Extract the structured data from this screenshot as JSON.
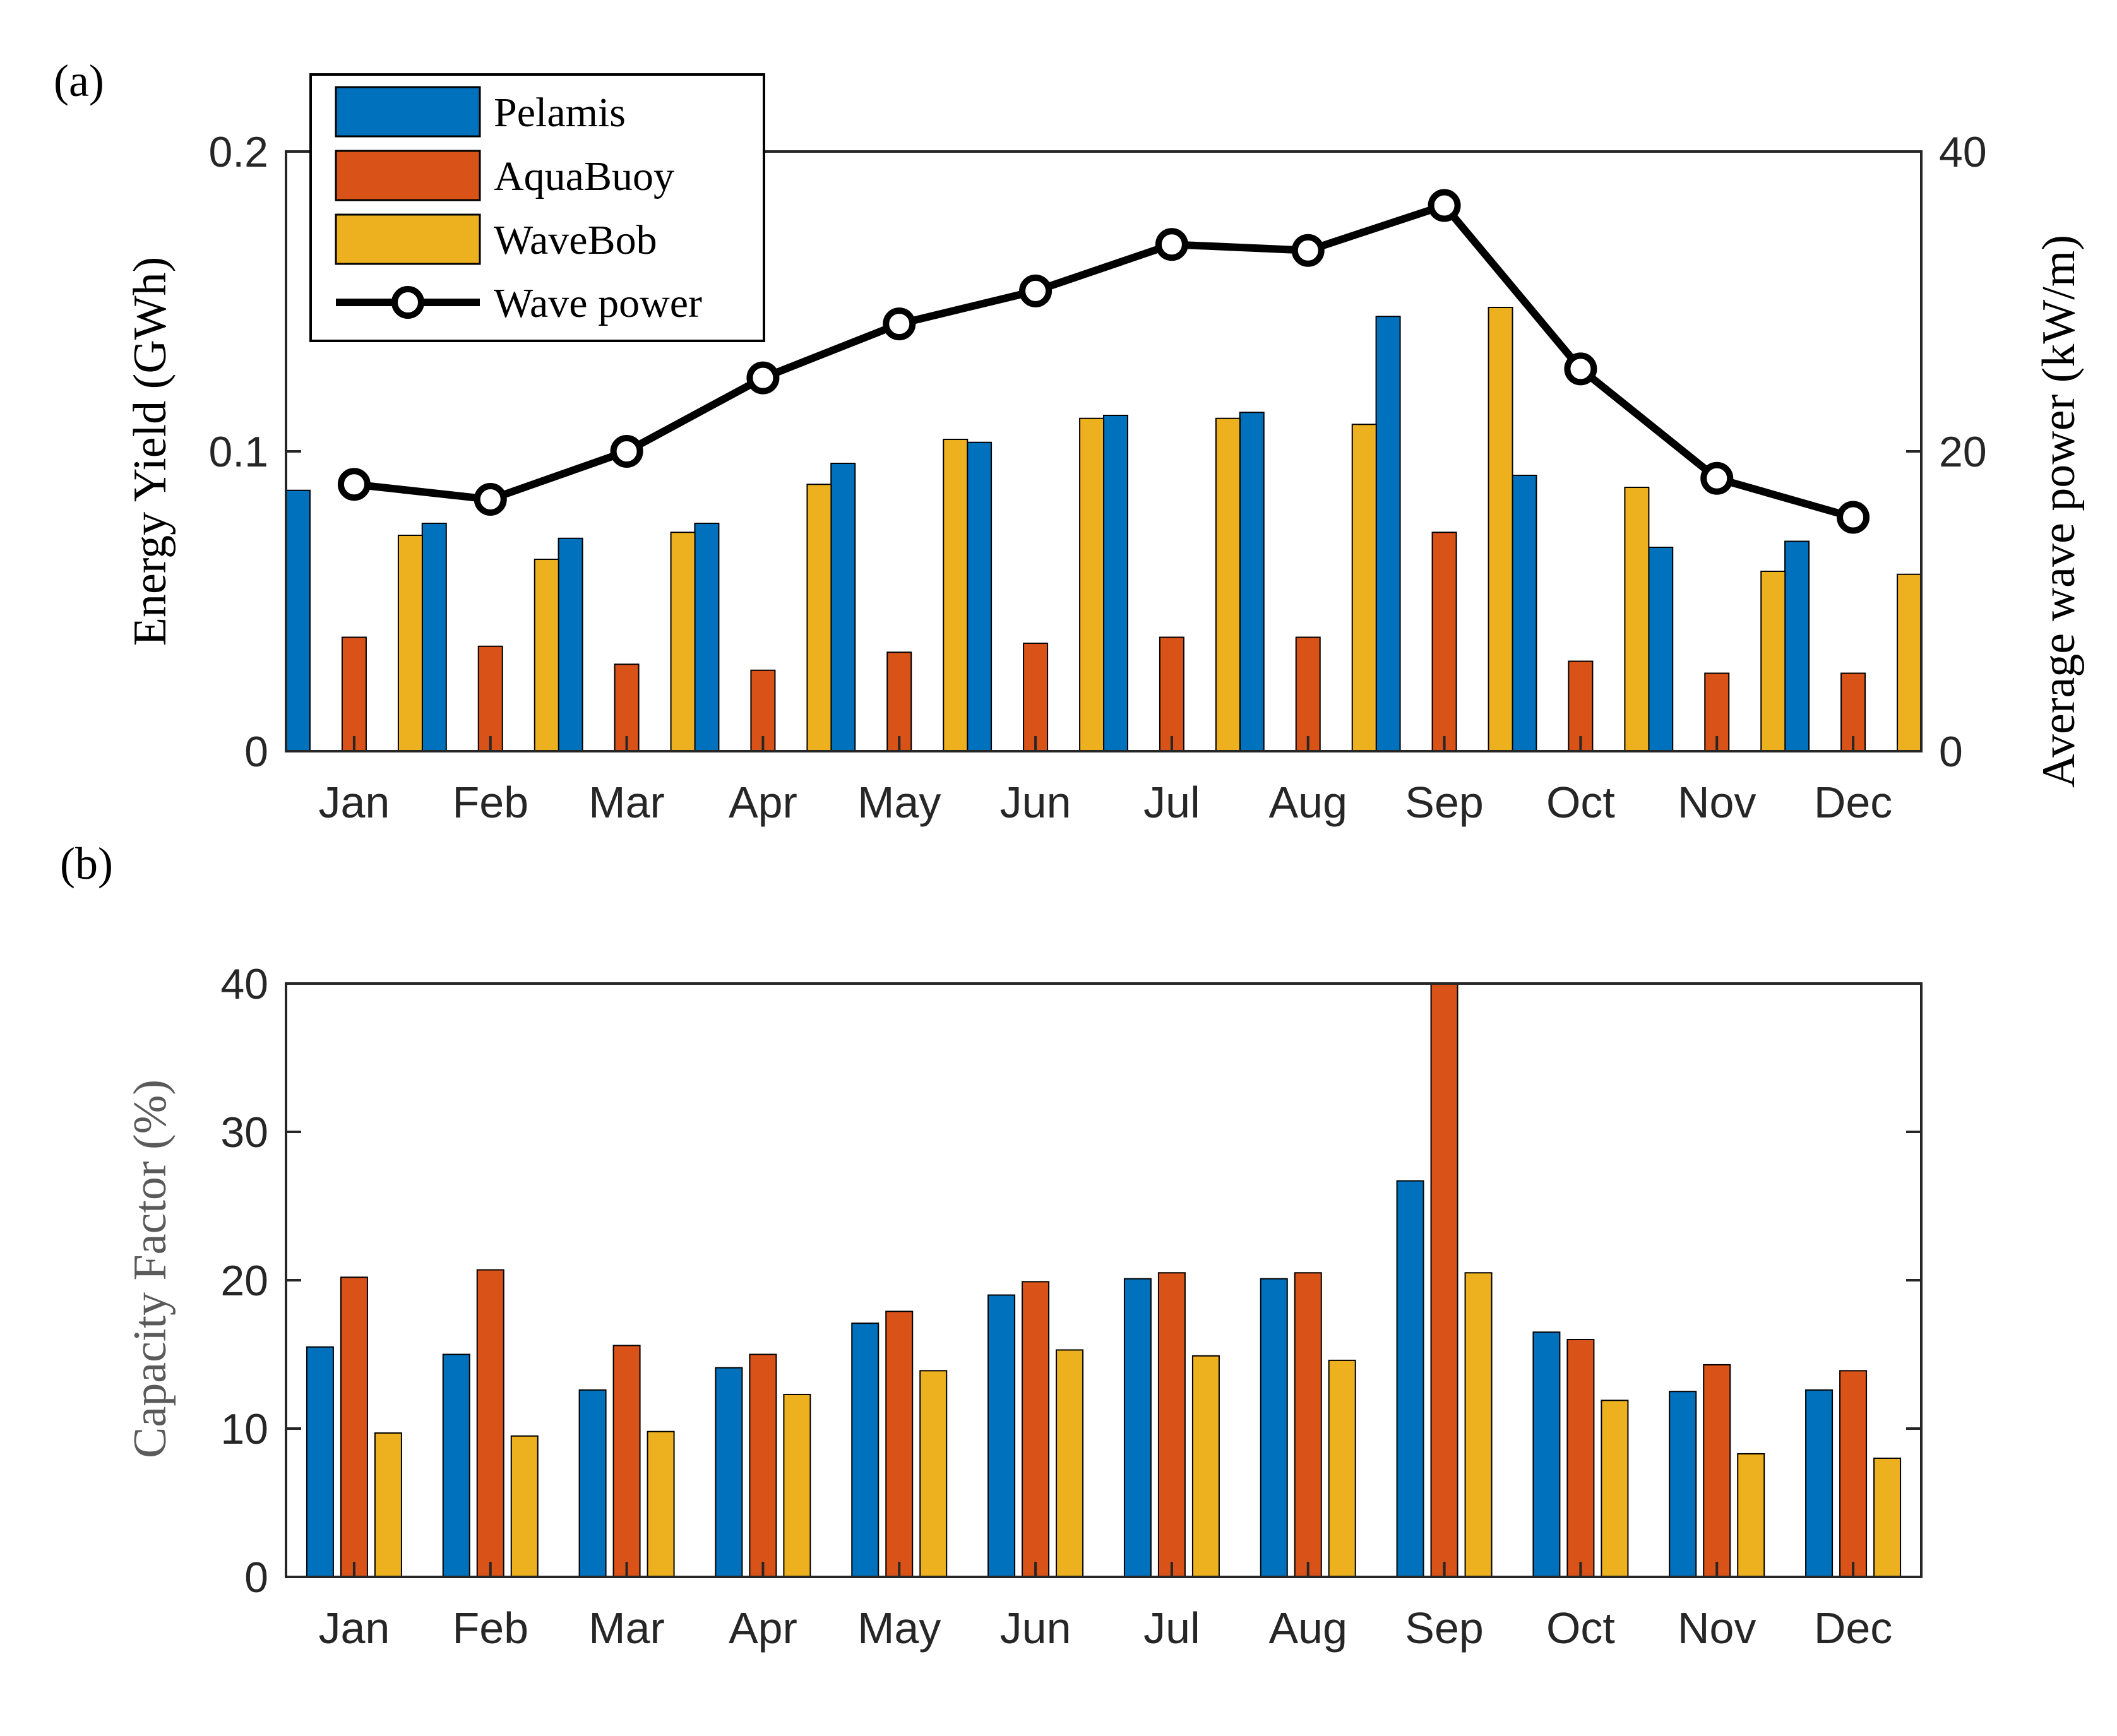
{
  "colors": {
    "pelamis": "#0072BD",
    "aquabuoy": "#D95319",
    "wavebob": "#EDB120",
    "wave_power": "#000000",
    "axis": "#262626",
    "bar_edge": "#000000"
  },
  "chart_data": [
    {
      "type": "bar",
      "panel_label": "(a)",
      "categories": [
        "Jan",
        "Feb",
        "Mar",
        "Apr",
        "May",
        "Jun",
        "Jul",
        "Aug",
        "Sep",
        "Oct",
        "Nov",
        "Dec"
      ],
      "ylabel": "Energy Yield (GWh)",
      "ylim": [
        0,
        0.2
      ],
      "yticks": [
        0,
        0.1,
        0.2
      ],
      "ytick_labels": [
        "0",
        "0.1",
        "0.2"
      ],
      "y2label": "Average wave power (kW/m)",
      "y2lim": [
        0,
        40
      ],
      "y2ticks": [
        0,
        20,
        40
      ],
      "y2tick_labels": [
        "0",
        "20",
        "40"
      ],
      "grid": false,
      "legend_position": "top-left",
      "series": [
        {
          "name": "Pelamis",
          "color_key": "pelamis",
          "values": [
            0.087,
            0.076,
            0.071,
            0.076,
            0.096,
            0.103,
            0.112,
            0.113,
            0.145,
            0.092,
            0.068,
            0.07
          ]
        },
        {
          "name": "AquaBuoy",
          "color_key": "aquabuoy",
          "values": [
            0.038,
            0.035,
            0.029,
            0.027,
            0.033,
            0.036,
            0.038,
            0.038,
            0.073,
            0.03,
            0.026,
            0.026
          ]
        },
        {
          "name": "WaveBob",
          "color_key": "wavebob",
          "values": [
            0.072,
            0.064,
            0.073,
            0.089,
            0.104,
            0.111,
            0.111,
            0.109,
            0.148,
            0.088,
            0.06,
            0.059
          ]
        }
      ],
      "line_series": {
        "name": "Wave power",
        "axis": "right",
        "color_key": "wave_power",
        "values": [
          17.8,
          16.8,
          20.0,
          24.9,
          28.5,
          30.7,
          33.8,
          33.4,
          36.4,
          25.5,
          18.2,
          15.6
        ]
      }
    },
    {
      "type": "bar",
      "panel_label": "(b)",
      "categories": [
        "Jan",
        "Feb",
        "Mar",
        "Apr",
        "May",
        "Jun",
        "Jul",
        "Aug",
        "Sep",
        "Oct",
        "Nov",
        "Dec"
      ],
      "ylabel": "Capacity Factor (%)",
      "ylim": [
        0,
        40
      ],
      "yticks": [
        0,
        10,
        20,
        30,
        40
      ],
      "ytick_labels": [
        "0",
        "10",
        "20",
        "30",
        "40"
      ],
      "grid": false,
      "series": [
        {
          "name": "Pelamis",
          "color_key": "pelamis",
          "values": [
            15.5,
            15.0,
            12.6,
            14.1,
            17.1,
            19.0,
            20.1,
            20.1,
            26.7,
            16.5,
            12.5,
            12.6
          ]
        },
        {
          "name": "AquaBuoy",
          "color_key": "aquabuoy",
          "values": [
            20.2,
            20.7,
            15.6,
            15.0,
            17.9,
            19.9,
            20.5,
            20.5,
            41.0,
            16.0,
            14.3,
            13.9
          ]
        },
        {
          "name": "WaveBob",
          "color_key": "wavebob",
          "values": [
            9.7,
            9.5,
            9.8,
            12.3,
            13.9,
            15.3,
            14.9,
            14.6,
            20.5,
            11.9,
            8.3,
            8.0
          ]
        }
      ]
    }
  ]
}
